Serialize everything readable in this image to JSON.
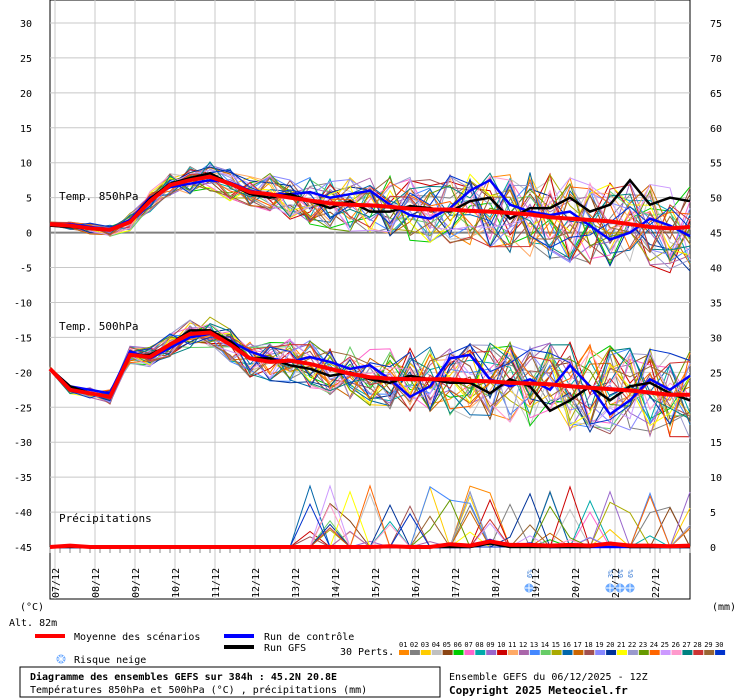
{
  "chart_data": {
    "type": "line",
    "left_axis_ticks": [
      "30",
      "25",
      "20",
      "15",
      "10",
      "5",
      "0",
      "-5",
      "-10",
      "-15",
      "-20",
      "-25",
      "-30",
      "-35",
      "-40",
      "-45"
    ],
    "right_axis_ticks": [
      "75",
      "70",
      "65",
      "60",
      "55",
      "50",
      "45",
      "40",
      "35",
      "30",
      "25",
      "20",
      "15",
      "10",
      "5",
      "0"
    ],
    "left_unit": "(°C)",
    "right_unit": "(mm)",
    "altitude": "Alt. 82m",
    "x_dates": [
      "07/12",
      "08/12",
      "09/12",
      "10/12",
      "11/12",
      "12/12",
      "13/12",
      "14/12",
      "15/12",
      "16/12",
      "17/12",
      "18/12",
      "19/12",
      "20/12",
      "21/12",
      "22/12"
    ],
    "panel_labels": {
      "t850": "Temp. 850hPa",
      "t500": "Temp. 500hPa",
      "precip": "Précipitations"
    },
    "x_hours": [
      0,
      12,
      24,
      36,
      48,
      60,
      72,
      84,
      96,
      108,
      120,
      132,
      144,
      156,
      168,
      180,
      192,
      204,
      216,
      228,
      240,
      252,
      264,
      276,
      288,
      300,
      312,
      324,
      336,
      348,
      360,
      372,
      384
    ],
    "series": [
      {
        "name": "Moyenne des scénarios",
        "color": "#ff0000",
        "t850": [
          1.2,
          1.0,
          0.6,
          0.4,
          1.5,
          4.5,
          6.8,
          7.5,
          8.0,
          7.0,
          5.8,
          5.5,
          5.0,
          4.6,
          4.2,
          4.0,
          3.9,
          3.7,
          3.4,
          3.3,
          3.3,
          3.1,
          3.0,
          2.8,
          2.6,
          2.2,
          2.0,
          1.8,
          1.6,
          1.2,
          0.8,
          0.6,
          0.8
        ],
        "t500": [
          -19.5,
          -22.5,
          -23.0,
          -23.5,
          -17.5,
          -17.8,
          -16.0,
          -14.5,
          -14.3,
          -16.0,
          -18.0,
          -18.5,
          -18.3,
          -18.8,
          -19.5,
          -20.2,
          -20.7,
          -20.9,
          -21.0,
          -21.0,
          -21.0,
          -21.2,
          -21.3,
          -21.5,
          -21.6,
          -21.7,
          -22.0,
          -22.2,
          -22.4,
          -22.6,
          -22.9,
          -23.2,
          -23.2
        ],
        "precip": [
          0,
          0.2,
          0,
          0,
          0,
          0,
          0,
          0,
          0,
          0,
          0,
          0,
          0,
          0,
          0,
          0,
          0,
          0.1,
          0,
          0,
          0.4,
          0.2,
          0.8,
          0.3,
          0.3,
          0.2,
          0.3,
          0.2,
          0.5,
          0.2,
          0.2,
          0.1,
          0.2
        ]
      },
      {
        "name": "Run de contrôle",
        "color": "#0000ff",
        "t850": [
          1.0,
          1.2,
          0.8,
          0.5,
          1.8,
          5.0,
          6.5,
          7.0,
          7.5,
          7.2,
          6.0,
          5.5,
          5.5,
          5.8,
          5.0,
          5.5,
          6.0,
          4.0,
          2.5,
          2.0,
          3.5,
          6.0,
          7.5,
          4.0,
          3.0,
          2.5,
          3.0,
          1.0,
          -1.0,
          0.0,
          2.0,
          1.0,
          -0.5
        ],
        "t500": [
          -19.5,
          -22.0,
          -22.5,
          -23.0,
          -17.0,
          -18.0,
          -16.5,
          -15.0,
          -14.5,
          -15.5,
          -17.0,
          -18.0,
          -18.5,
          -17.8,
          -18.5,
          -19.5,
          -19.0,
          -21.0,
          -23.5,
          -22.0,
          -18.0,
          -17.5,
          -21.0,
          -22.0,
          -21.0,
          -22.5,
          -19.0,
          -22.0,
          -26.0,
          -24.0,
          -21.0,
          -22.5,
          -20.5
        ],
        "precip": [
          0,
          0,
          0,
          0,
          0,
          0,
          0,
          0,
          0,
          0,
          0,
          0,
          0,
          0,
          0,
          0,
          0,
          0,
          0,
          0,
          0,
          0,
          1.0,
          0,
          0.5,
          0,
          0,
          0,
          0,
          0,
          0,
          0,
          0
        ]
      },
      {
        "name": "Run GFS",
        "color": "#000000",
        "t850": [
          1.0,
          0.8,
          0.6,
          0.4,
          1.6,
          4.8,
          7.0,
          7.8,
          8.5,
          7.0,
          5.5,
          5.0,
          5.5,
          4.5,
          3.5,
          4.5,
          3.0,
          3.0,
          3.8,
          3.5,
          3.0,
          4.5,
          5.0,
          2.0,
          3.5,
          3.5,
          5.0,
          3.0,
          4.0,
          7.5,
          4.0,
          5.0,
          4.5
        ],
        "t500": [
          -19.5,
          -22.0,
          -23.0,
          -23.5,
          -17.5,
          -17.5,
          -16.0,
          -14.0,
          -14.0,
          -15.5,
          -18.0,
          -18.0,
          -19.0,
          -19.5,
          -20.5,
          -20.0,
          -21.0,
          -21.5,
          -20.5,
          -21.0,
          -21.5,
          -21.5,
          -23.0,
          -21.0,
          -22.0,
          -25.5,
          -24.0,
          -22.0,
          -24.0,
          -22.0,
          -21.5,
          -23.0,
          -24.0
        ],
        "precip": [
          0,
          0,
          0,
          0,
          0,
          0,
          0,
          0,
          0,
          0,
          0,
          0,
          0,
          0,
          0,
          0,
          0,
          0,
          0,
          0,
          0,
          0,
          0.5,
          0,
          0,
          0,
          0,
          0,
          0.6,
          0,
          0,
          0,
          0
        ]
      }
    ],
    "perturbation_label": "30 Perts.",
    "perturbation_ids": [
      "01",
      "02",
      "03",
      "04",
      "05",
      "06",
      "07",
      "08",
      "09",
      "10",
      "11",
      "12",
      "13",
      "14",
      "15",
      "16",
      "17",
      "18",
      "19",
      "20",
      "21",
      "22",
      "23",
      "24",
      "25",
      "26",
      "27",
      "28",
      "29",
      "30"
    ],
    "perturbation_colors": [
      "#ff8800",
      "#808080",
      "#ffcc00",
      "#c0c0c0",
      "#8b4513",
      "#00cc00",
      "#ff66cc",
      "#00aaaa",
      "#9966cc",
      "#cc0000",
      "#ffaa66",
      "#aa66aa",
      "#4488ff",
      "#66cc66",
      "#aaaa00",
      "#0066aa",
      "#cc6600",
      "#a05050",
      "#8888ff",
      "#003399",
      "#ffff00",
      "#9999cc",
      "#669900",
      "#ff6600",
      "#cc99ff",
      "#ff99cc",
      "#008080",
      "#cc3333",
      "#996633",
      "#0033cc"
    ],
    "snow_risk": [
      {
        "date": "18/12",
        "pct": "6%"
      },
      {
        "date": "20/12",
        "pct": "3%"
      },
      {
        "date": "20/12",
        "pct": "6%"
      },
      {
        "date": "21/12",
        "pct": "6%"
      }
    ],
    "legend": {
      "mean": "Moyenne des scénarios",
      "control": "Run de contrôle",
      "gfs": "Run GFS",
      "snow": "Risque neige"
    }
  },
  "footer": {
    "title": "Diagramme des ensembles GEFS sur 384h : 45.2N 20.8E",
    "subtitle": "Températures 850hPa et 500hPa (°C) , précipitations (mm)",
    "ensemble": "Ensemble GEFS du 06/12/2025 - 12Z",
    "copyright": "Copyright 2025 Meteociel.fr"
  },
  "colors": {
    "grid": "#c8c8c8",
    "zero_line": "#808080"
  }
}
